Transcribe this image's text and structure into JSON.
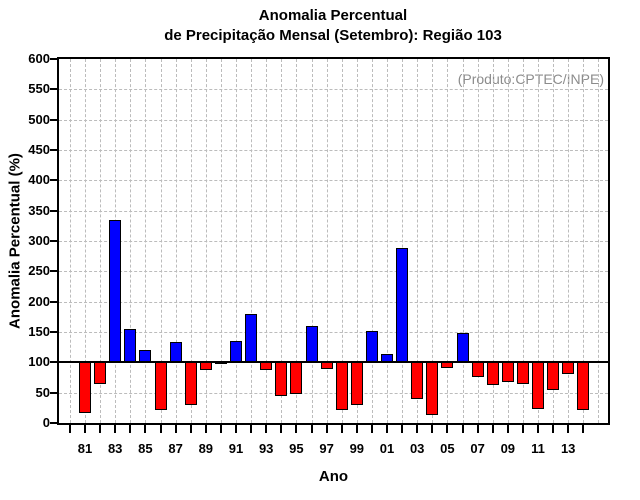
{
  "chart_data": {
    "type": "bar",
    "title": "Anomalia Percentual",
    "subtitle": "de Precipitação Mensal (Setembro): Região 103",
    "credit": "(Produto:CPTEC/INPE)",
    "xlabel": "Ano",
    "ylabel": "Anomalia Percentual (%)",
    "baseline_value": 100,
    "ylim": [
      0,
      600
    ],
    "ytick_step": 50,
    "ytick_labels": [
      "0",
      "50",
      "100",
      "150",
      "200",
      "250",
      "300",
      "350",
      "400",
      "450",
      "500",
      "550",
      "600"
    ],
    "xtick_labels": [
      "81",
      "83",
      "85",
      "87",
      "89",
      "91",
      "93",
      "95",
      "97",
      "99",
      "01",
      "03",
      "05",
      "07",
      "09",
      "11",
      "13"
    ],
    "grid": true,
    "legend": "none",
    "series": [
      {
        "name": "Anomalia Percentual (%)",
        "x": [
          1981,
          1982,
          1983,
          1984,
          1985,
          1986,
          1987,
          1988,
          1989,
          1990,
          1991,
          1992,
          1993,
          1994,
          1995,
          1996,
          1997,
          1998,
          1999,
          2000,
          2001,
          2002,
          2003,
          2004,
          2005,
          2006,
          2007,
          2008,
          2009,
          2010,
          2011,
          2012,
          2013,
          2014
        ],
        "values": [
          16,
          65,
          335,
          155,
          120,
          22,
          133,
          30,
          87,
          97,
          135,
          180,
          88,
          45,
          48,
          160,
          89,
          21,
          30,
          151,
          113,
          289,
          39,
          13,
          90,
          148,
          75,
          63,
          67,
          64,
          23,
          55,
          80,
          21
        ]
      }
    ],
    "colors": {
      "above_baseline": "#0000ff",
      "below_baseline": "#ff0000",
      "bar_outline": "#000000",
      "grid": "#bcbcbc",
      "axis": "#000000",
      "credit_text": "#8c8c8c"
    }
  }
}
